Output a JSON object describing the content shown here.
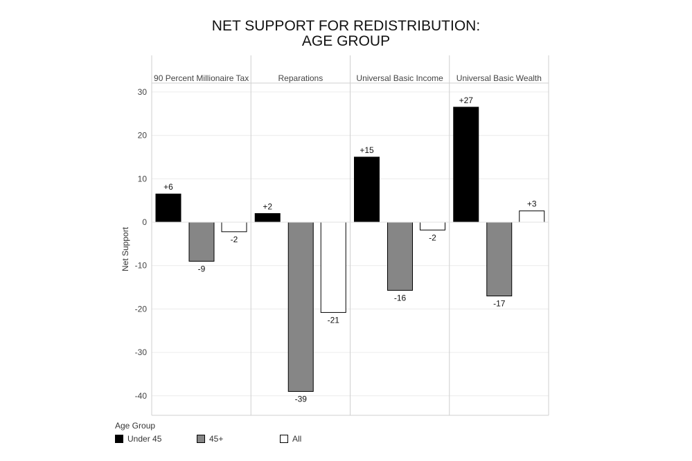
{
  "chart_data": {
    "type": "bar",
    "title_line1": "NET SUPPORT FOR REDISTRIBUTION:",
    "title_line2": "AGE GROUP",
    "ylabel": "Net Support",
    "ylim": [
      -45,
      30
    ],
    "yticks": [
      30,
      20,
      10,
      0,
      -10,
      -20,
      -30,
      -40
    ],
    "gridlines": true,
    "legend_title": "Age Group",
    "legend_position": "bottom-left",
    "categories": [
      "90 Percent Millionaire Tax",
      "Reparations",
      "Universal Basic Income",
      "Universal Basic Wealth"
    ],
    "series": [
      {
        "name": "Under 45",
        "color": "#000000",
        "values": [
          6.5,
          2,
          15,
          26.5
        ],
        "labels": [
          "+6",
          "+2",
          "+15",
          "+27"
        ]
      },
      {
        "name": "45+",
        "color": "#868686",
        "values": [
          -9,
          -39,
          -15.7,
          -17
        ],
        "labels": [
          "-9",
          "-39",
          "-16",
          "-17"
        ]
      },
      {
        "name": "All",
        "color": "#ffffff",
        "values": [
          -2.2,
          -20.8,
          -1.8,
          2.6
        ],
        "labels": [
          "-2",
          "-21",
          "-2",
          "+3"
        ]
      }
    ]
  }
}
